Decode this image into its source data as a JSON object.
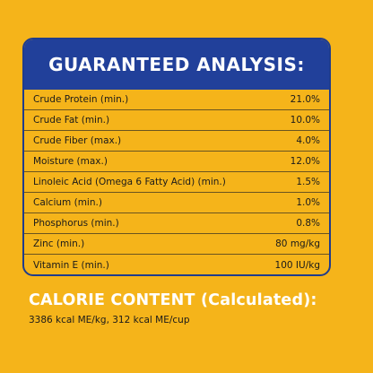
{
  "panel": {
    "title": "GUARANTEED ANALYSIS:",
    "rows": [
      {
        "label": "Crude Protein (min.)",
        "value": "21.0%"
      },
      {
        "label": "Crude Fat (min.)",
        "value": "10.0%"
      },
      {
        "label": "Crude Fiber (max.)",
        "value": "4.0%"
      },
      {
        "label": "Moisture (max.)",
        "value": "12.0%"
      },
      {
        "label": "Linoleic Acid (Omega 6 Fatty Acid) (min.)",
        "value": "1.5%"
      },
      {
        "label": "Calcium (min.)",
        "value": "1.0%"
      },
      {
        "label": "Phosphorus (min.)",
        "value": "0.8%"
      },
      {
        "label": "Zinc (min.)",
        "value": "80 mg/kg"
      },
      {
        "label": "Vitamin E (min.)",
        "value": "100 IU/kg"
      }
    ]
  },
  "calorie": {
    "title": "CALORIE CONTENT (Calculated):",
    "value": "3386 kcal ME/kg, 312 kcal ME/cup"
  },
  "colors": {
    "background": "#F5B41A",
    "header": "#21409A",
    "border": "#1F3C8C"
  }
}
